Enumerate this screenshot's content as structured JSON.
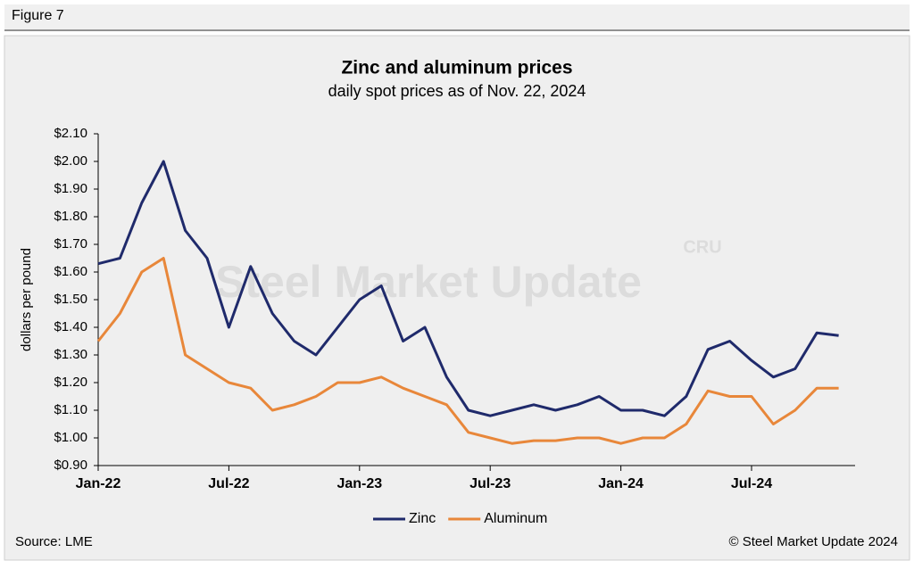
{
  "chart_data": {
    "type": "line",
    "figure_label": "Figure 7",
    "title": "Zinc and aluminum prices",
    "subtitle": "daily spot prices as of Nov. 22, 2024",
    "y_label": "dollars per pound",
    "watermark": "Steel Market Update",
    "watermark_logo": "CRU",
    "source": "Source: LME",
    "credit": "© Steel Market Update 2024",
    "x": [
      "2022-01",
      "2022-02",
      "2022-03",
      "2022-04",
      "2022-05",
      "2022-06",
      "2022-07",
      "2022-08",
      "2022-09",
      "2022-10",
      "2022-11",
      "2022-12",
      "2023-01",
      "2023-02",
      "2023-03",
      "2023-04",
      "2023-05",
      "2023-06",
      "2023-07",
      "2023-08",
      "2023-09",
      "2023-10",
      "2023-11",
      "2023-12",
      "2024-01",
      "2024-02",
      "2024-03",
      "2024-04",
      "2024-05",
      "2024-06",
      "2024-07",
      "2024-08",
      "2024-09",
      "2024-10",
      "2024-11"
    ],
    "series": [
      {
        "name": "Zinc",
        "color": "#1f2a6b",
        "values": [
          1.63,
          1.65,
          1.85,
          2.0,
          1.75,
          1.65,
          1.4,
          1.62,
          1.45,
          1.35,
          1.3,
          1.4,
          1.5,
          1.55,
          1.35,
          1.4,
          1.22,
          1.1,
          1.08,
          1.1,
          1.12,
          1.1,
          1.12,
          1.15,
          1.1,
          1.1,
          1.08,
          1.15,
          1.32,
          1.35,
          1.28,
          1.22,
          1.25,
          1.38,
          1.37
        ]
      },
      {
        "name": "Aluminum",
        "color": "#e8873a",
        "values": [
          1.35,
          1.45,
          1.6,
          1.65,
          1.3,
          1.25,
          1.2,
          1.18,
          1.1,
          1.12,
          1.15,
          1.2,
          1.2,
          1.22,
          1.18,
          1.15,
          1.12,
          1.02,
          1.0,
          0.98,
          0.99,
          0.99,
          1.0,
          1.0,
          0.98,
          1.0,
          1.0,
          1.05,
          1.17,
          1.15,
          1.15,
          1.05,
          1.1,
          1.18,
          1.18
        ]
      }
    ],
    "xticks": [
      {
        "value": "2022-01",
        "label": "Jan-22"
      },
      {
        "value": "2022-07",
        "label": "Jul-22"
      },
      {
        "value": "2023-01",
        "label": "Jan-23"
      },
      {
        "value": "2023-07",
        "label": "Jul-23"
      },
      {
        "value": "2024-01",
        "label": "Jan-24"
      },
      {
        "value": "2024-07",
        "label": "Jul-24"
      }
    ],
    "ylim": [
      0.9,
      2.1
    ],
    "yticks": [
      {
        "value": 0.9,
        "label": "$0.90"
      },
      {
        "value": 1.0,
        "label": "$1.00"
      },
      {
        "value": 1.1,
        "label": "$1.10"
      },
      {
        "value": 1.2,
        "label": "$1.20"
      },
      {
        "value": 1.3,
        "label": "$1.30"
      },
      {
        "value": 1.4,
        "label": "$1.40"
      },
      {
        "value": 1.5,
        "label": "$1.50"
      },
      {
        "value": 1.6,
        "label": "$1.60"
      },
      {
        "value": 1.7,
        "label": "$1.70"
      },
      {
        "value": 1.8,
        "label": "$1.80"
      },
      {
        "value": 1.9,
        "label": "$1.90"
      },
      {
        "value": 2.0,
        "label": "$2.00"
      },
      {
        "value": 2.1,
        "label": "$2.10"
      }
    ],
    "grid": false,
    "legend": "bottom"
  }
}
